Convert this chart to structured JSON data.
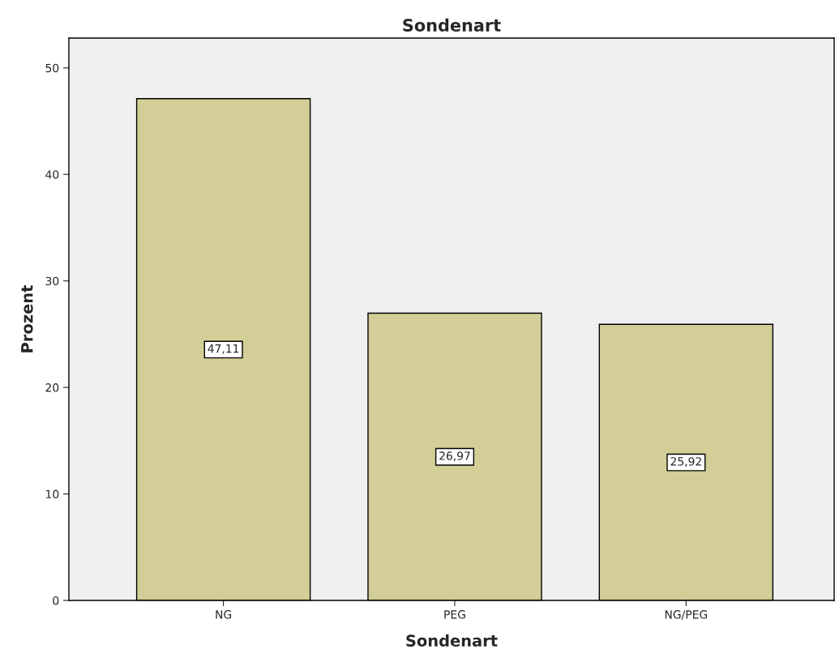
{
  "chart_data": {
    "type": "bar",
    "title": "Sondenart",
    "xlabel": "Sondenart",
    "ylabel": "Prozent",
    "categories": [
      "NG",
      "PEG",
      "NG/PEG"
    ],
    "values": [
      47.11,
      26.97,
      25.92
    ],
    "value_labels": [
      "47,11",
      "26,97",
      "25,92"
    ],
    "color": "#d3ce97",
    "ylim": [
      0,
      52.8
    ],
    "yticks": [
      0,
      10,
      20,
      30,
      40,
      50
    ],
    "grid": false,
    "legend": false
  }
}
